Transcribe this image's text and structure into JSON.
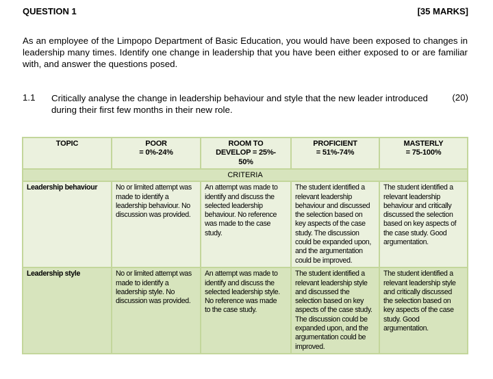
{
  "question": {
    "title": "QUESTION 1",
    "marks": "[35 MARKS]",
    "intro": "As an employee of the Limpopo Department of Basic Education, you would have been exposed to changes in leadership many times. Identify one change in leadership that you have been either exposed to or are familiar with, and answer the questions posed.",
    "sub": {
      "number": "1.1",
      "text": "Critically analyse the change in leadership behaviour and style that the new leader introduced during their first few months in their new role.",
      "marks": "(20)"
    }
  },
  "rubric": {
    "headers": [
      "TOPIC",
      "POOR\n= 0%-24%",
      "ROOM TO\nDEVELOP = 25%-\n50%",
      "PROFICIENT\n= 51%-74%",
      "MASTERLY\n= 75-100%"
    ],
    "criteria_label": "CRITERIA",
    "rows": [
      {
        "topic": "Leadership behaviour",
        "cells": [
          "No or limited attempt was\nmade to identify a\nleadership behaviour. No\ndiscussion was provided.",
          "An attempt was made to\nidentify and discuss the\nselected leadership\nbehaviour. No reference\nwas made to the case\nstudy.",
          "The student identified a\nrelevant leadership\nbehaviour and discussed\nthe selection based on\nkey aspects of the case\nstudy. The discussion\ncould be expanded upon,\nand the argumentation\ncould be improved.",
          "The student identified a\nrelevant leadership\nbehaviour and critically\ndiscussed the selection\nbased on key aspects of\nthe case study. Good\nargumentation."
        ]
      },
      {
        "topic": "Leadership style",
        "cells": [
          "No or limited attempt was\nmade to identify a\nleadership style. No\ndiscussion was provided.",
          "An attempt was made to\nidentify and discuss the\nselected leadership style.\nNo reference was made\nto the case study.",
          "The student identified a\nrelevant leadership style\nand discussed the\nselection based on key\naspects of the case study.\nThe discussion could be\nexpanded upon, and the\nargumentation could be\nimproved.",
          "The student identified a\nrelevant leadership style\nand critically discussed\nthe selection based on\nkey aspects of the case\nstudy. Good\nargumentation."
        ]
      }
    ]
  }
}
